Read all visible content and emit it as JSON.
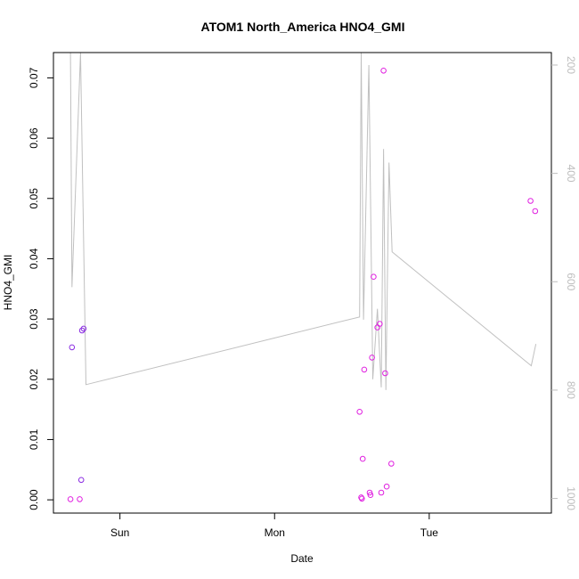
{
  "chart_data": {
    "type": "scatter",
    "title": "ATOM1 North_America HNO4_GMI",
    "xlabel": "Date",
    "ylabel": "HNO4_GMI",
    "x_ticks": [
      "Sun",
      "Mon",
      "Tue"
    ],
    "x_tick_positions_days": [
      1,
      2,
      3
    ],
    "xlim_days": [
      0.57,
      3.79
    ],
    "ylim": [
      -0.0022,
      0.0742
    ],
    "y_ticks": [
      0.0,
      0.01,
      0.02,
      0.03,
      0.04,
      0.05,
      0.06,
      0.07
    ],
    "y_tick_labels": [
      "0.00",
      "0.01",
      "0.02",
      "0.03",
      "0.04",
      "0.05",
      "0.06",
      "0.07"
    ],
    "right_axis": {
      "label_color": "#bdbdbd",
      "reversed": true,
      "ylim": [
        1027,
        177
      ],
      "ticks": [
        200,
        400,
        600,
        800,
        1000
      ],
      "tick_labels": [
        "200",
        "400",
        "600",
        "800",
        "1000"
      ]
    },
    "points_color": "#e020e0",
    "points_alt_color": "#8a2be2",
    "line_color": "#c0c0c0",
    "points": [
      {
        "t": 0.68,
        "v": 0.0001
      },
      {
        "t": 0.69,
        "v": 0.0253
      },
      {
        "t": 0.74,
        "v": 0.0001
      },
      {
        "t": 0.75,
        "v": 0.0033
      },
      {
        "t": 0.755,
        "v": 0.0281
      },
      {
        "t": 0.765,
        "v": 0.0284
      },
      {
        "t": 2.55,
        "v": 0.0146
      },
      {
        "t": 2.56,
        "v": 0.0004
      },
      {
        "t": 2.565,
        "v": 0.0002
      },
      {
        "t": 2.57,
        "v": 0.0068
      },
      {
        "t": 2.58,
        "v": 0.0216
      },
      {
        "t": 2.615,
        "v": 0.0012
      },
      {
        "t": 2.62,
        "v": 0.0008
      },
      {
        "t": 2.63,
        "v": 0.0236
      },
      {
        "t": 2.64,
        "v": 0.037
      },
      {
        "t": 2.665,
        "v": 0.0286
      },
      {
        "t": 2.68,
        "v": 0.0292
      },
      {
        "t": 2.69,
        "v": 0.0012
      },
      {
        "t": 2.705,
        "v": 0.0712
      },
      {
        "t": 2.715,
        "v": 0.021
      },
      {
        "t": 2.725,
        "v": 0.0022
      },
      {
        "t": 2.755,
        "v": 0.006
      },
      {
        "t": 3.655,
        "v": 0.0496
      },
      {
        "t": 3.685,
        "v": 0.0479
      }
    ],
    "pressure_line": [
      {
        "t": 0.68,
        "p": 177
      },
      {
        "t": 0.69,
        "p": 610
      },
      {
        "t": 0.745,
        "p": 177
      },
      {
        "t": 0.78,
        "p": 790
      },
      {
        "t": 2.55,
        "p": 665
      },
      {
        "t": 2.56,
        "p": 177
      },
      {
        "t": 2.575,
        "p": 670
      },
      {
        "t": 2.61,
        "p": 200
      },
      {
        "t": 2.635,
        "p": 780
      },
      {
        "t": 2.665,
        "p": 650
      },
      {
        "t": 2.69,
        "p": 795
      },
      {
        "t": 2.705,
        "p": 355
      },
      {
        "t": 2.72,
        "p": 800
      },
      {
        "t": 2.74,
        "p": 380
      },
      {
        "t": 2.76,
        "p": 545
      },
      {
        "t": 3.66,
        "p": 755
      },
      {
        "t": 3.69,
        "p": 715
      }
    ]
  }
}
